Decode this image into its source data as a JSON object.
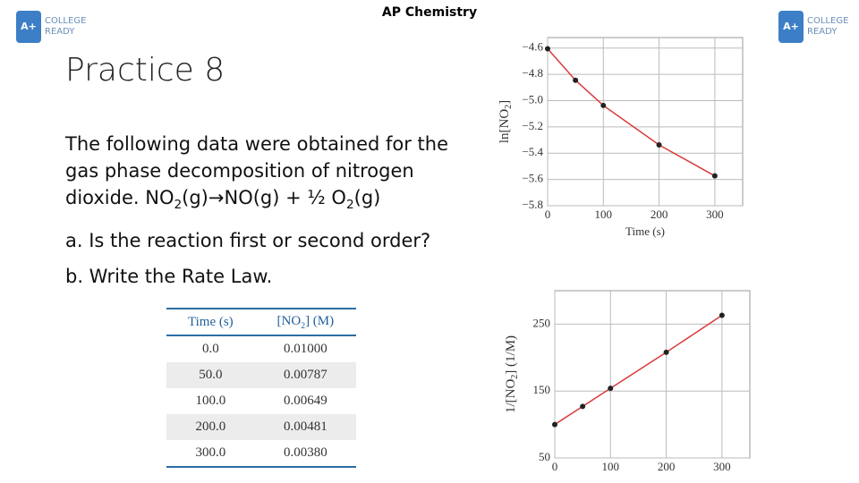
{
  "header": {
    "title": "AP Chemistry",
    "logo": {
      "badge": "A+",
      "text": [
        "COLLEGE",
        "READY"
      ]
    }
  },
  "slide_title": "Practice 8",
  "body": {
    "lines": [
      "The following data were obtained for the",
      "gas phase decomposition of nitrogen"
    ],
    "equation": [
      "dioxide. NO",
      "2",
      "(g)",
      "→",
      "NO(g) + ½ O",
      "2",
      "(g)"
    ],
    "questions": [
      "a. Is the reaction first or second order?",
      "b. Write the Rate Law."
    ]
  },
  "table": {
    "header": [
      [
        "Time (s)"
      ],
      [
        "[NO",
        "2",
        "] (M)"
      ]
    ],
    "rows": [
      [
        "0.0",
        "0.01000"
      ],
      [
        "50.0",
        "0.00787"
      ],
      [
        "100.0",
        "0.00649"
      ],
      [
        "200.0",
        "0.00481"
      ],
      [
        "300.0",
        "0.00380"
      ]
    ]
  },
  "chart_data": [
    {
      "type": "line",
      "x": [
        0,
        50,
        100,
        200,
        300
      ],
      "xlim": [
        0,
        350
      ],
      "xticks": [
        0,
        100,
        200,
        300
      ],
      "ylim": [
        -5.8,
        -4.52
      ],
      "yticks": [
        {
          "value": -4.6,
          "label": "−4.6"
        },
        {
          "value": -4.8,
          "label": "−4.8"
        },
        {
          "value": -5.0,
          "label": "−5.0"
        },
        {
          "value": -5.2,
          "label": "−5.2"
        },
        {
          "value": -5.4,
          "label": "−5.4"
        },
        {
          "value": -5.6,
          "label": "−5.6"
        },
        {
          "value": -5.8,
          "label": "−5.8"
        }
      ],
      "x_label": "Time (s)",
      "y_label": [
        "ln[NO",
        "2",
        "]"
      ],
      "grid": true,
      "series": [
        {
          "values": [
            -4.605,
            -4.845,
            -5.037,
            -5.337,
            -5.573
          ],
          "color": "#d93a3a",
          "marker_color": "#222222"
        }
      ]
    },
    {
      "type": "line",
      "x": [
        0,
        50,
        100,
        200,
        300
      ],
      "xlim": [
        0,
        350
      ],
      "xticks": [
        0,
        100,
        200,
        300
      ],
      "ylim": [
        50,
        300
      ],
      "yticks": [
        50,
        150,
        250
      ],
      "y_label": [
        "1/[NO",
        "2",
        "] (1/M)"
      ],
      "grid": true,
      "series": [
        {
          "values": [
            100,
            127.1,
            154.1,
            207.9,
            263.2
          ],
          "color": "#d93a3a",
          "marker_color": "#222222"
        }
      ]
    }
  ]
}
